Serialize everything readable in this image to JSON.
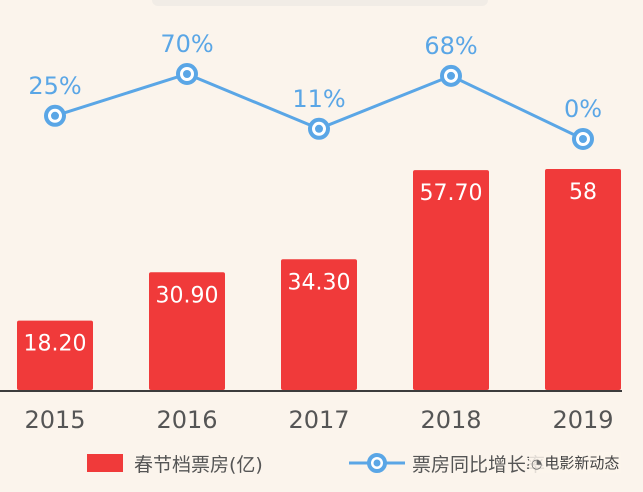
{
  "chart_data": {
    "type": "bar",
    "categories": [
      "2015",
      "2016",
      "2017",
      "2018",
      "2019"
    ],
    "series": [
      {
        "name": "春节档票房(亿)",
        "type": "bar",
        "values": [
          18.2,
          30.9,
          34.3,
          57.7,
          58
        ],
        "labels": [
          "18.20",
          "30.90",
          "34.30",
          "57.70",
          "58"
        ],
        "color": "#f03a3a"
      },
      {
        "name": "票房同比增长率",
        "type": "line",
        "values": [
          25,
          70,
          11,
          68,
          0
        ],
        "labels": [
          "25%",
          "70%",
          "11%",
          "68%",
          "0%"
        ],
        "color": "#5aa6e6"
      }
    ],
    "title": "",
    "xlabel": "",
    "ylabel": "",
    "legend_position": "bottom",
    "grid": false
  },
  "legend": {
    "bar_label": "春节档票房(亿)",
    "line_label": "票房同比增长率"
  },
  "watermark": {
    "text": "电影新动态",
    "icon": "wechat-icon"
  }
}
